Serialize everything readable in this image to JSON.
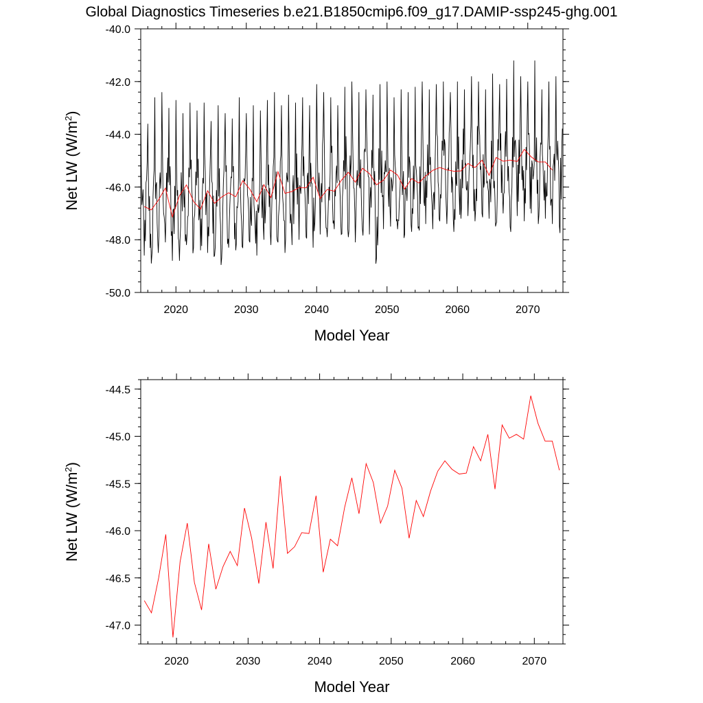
{
  "figure": {
    "title": "Global Diagnostics Timeseries b.e21.B1850cmip6.f09_g17.DAMIP-ssp245-ghg.001"
  },
  "colors": {
    "monthly_line": "#000000",
    "annual_line": "#ff0000",
    "axes": "#000000"
  },
  "chart_data": [
    {
      "type": "line",
      "xlabel": "Model Year",
      "ylabel": "Net LW (W/m²)",
      "ylabel_main": "Net LW (W/m",
      "ylabel_sup": "2",
      "ylabel_close": ")",
      "xlim": [
        2015,
        2075
      ],
      "ylim": [
        -50.0,
        -40.0
      ],
      "xticks": [
        2020,
        2030,
        2040,
        2050,
        2060,
        2070
      ],
      "xtick_labels": [
        "2020",
        "2030",
        "2040",
        "2050",
        "2060",
        "2070"
      ],
      "yticks": [
        -50.0,
        -48.0,
        -46.0,
        -44.0,
        -42.0,
        -40.0
      ],
      "ytick_labels": [
        "-50.0",
        "-48.0",
        "-46.0",
        "-44.0",
        "-42.0",
        "-40.0"
      ],
      "grid": false,
      "series": [
        {
          "color": "#000000",
          "kind": "monthly",
          "x_start": 2015.0,
          "x_step": 0.0833333,
          "annual_peaks": [
            -43.3,
            -43.6,
            -42.6,
            -42.4,
            -43.0,
            -42.7,
            -43.2,
            -42.8,
            -43.1,
            -42.8,
            -43.5,
            -42.9,
            -43.2,
            -43.4,
            -42.6,
            -43.2,
            -42.9,
            -43.1,
            -42.7,
            -42.4,
            -42.9,
            -42.5,
            -42.8,
            -42.6,
            -42.9,
            -42.1,
            -42.4,
            -42.6,
            -42.9,
            -42.2,
            -42.0,
            -42.4,
            -42.3,
            -42.5,
            -42.1,
            -42.0,
            -42.6,
            -42.3,
            -42.4,
            -42.2,
            -42.0,
            -42.3,
            -42.1,
            -42.0,
            -42.4,
            -42.0,
            -42.3,
            -41.8,
            -42.0,
            -42.3,
            -41.7,
            -42.1,
            -41.9,
            -41.2,
            -41.8,
            -42.0,
            -41.2,
            -42.3,
            -42.0,
            -41.8
          ],
          "annual_troughs": [
            -48.6,
            -48.9,
            -48.5,
            -48.1,
            -48.8,
            -48.8,
            -48.2,
            -48.3,
            -48.4,
            -48.5,
            -48.6,
            -48.7,
            -48.3,
            -48.4,
            -48.3,
            -48.1,
            -48.6,
            -48.0,
            -48.2,
            -48.1,
            -48.5,
            -48.2,
            -48.0,
            -47.9,
            -48.3,
            -47.8,
            -47.9,
            -47.6,
            -47.8,
            -47.9,
            -48.1,
            -47.6,
            -47.8,
            -48.7,
            -47.6,
            -47.5,
            -47.6,
            -47.8,
            -47.7,
            -47.5,
            -47.4,
            -47.6,
            -47.3,
            -47.4,
            -47.7,
            -47.2,
            -47.1,
            -47.3,
            -47.0,
            -47.2,
            -47.4,
            -47.0,
            -47.5,
            -47.1,
            -47.3,
            -47.0,
            -47.4,
            -47.2,
            -47.4,
            -47.5
          ]
        },
        {
          "color": "#ff0000",
          "kind": "annual",
          "x": [
            2015.5,
            2016.5,
            2017.5,
            2018.5,
            2019.5,
            2020.5,
            2021.5,
            2022.5,
            2023.5,
            2024.5,
            2025.5,
            2026.5,
            2027.5,
            2028.5,
            2029.5,
            2030.5,
            2031.5,
            2032.5,
            2033.5,
            2034.5,
            2035.5,
            2036.5,
            2037.5,
            2038.5,
            2039.5,
            2040.5,
            2041.5,
            2042.5,
            2043.5,
            2044.5,
            2045.5,
            2046.5,
            2047.5,
            2048.5,
            2049.5,
            2050.5,
            2051.5,
            2052.5,
            2053.5,
            2054.5,
            2055.5,
            2056.5,
            2057.5,
            2058.5,
            2059.5,
            2060.5,
            2061.5,
            2062.5,
            2063.5,
            2064.5,
            2065.5,
            2066.5,
            2067.5,
            2068.5,
            2069.5,
            2070.5,
            2071.5,
            2072.5,
            2073.5
          ],
          "y": [
            -46.74,
            -46.87,
            -46.5,
            -46.04,
            -47.13,
            -46.33,
            -45.92,
            -46.55,
            -46.84,
            -46.14,
            -46.62,
            -46.38,
            -46.22,
            -46.37,
            -45.76,
            -46.08,
            -46.56,
            -45.91,
            -46.4,
            -45.42,
            -46.24,
            -46.17,
            -46.02,
            -46.03,
            -45.63,
            -46.44,
            -46.09,
            -46.16,
            -45.75,
            -45.44,
            -45.82,
            -45.29,
            -45.49,
            -45.92,
            -45.74,
            -45.36,
            -45.55,
            -46.08,
            -45.68,
            -45.85,
            -45.58,
            -45.37,
            -45.26,
            -45.35,
            -45.4,
            -45.39,
            -45.11,
            -45.26,
            -44.98,
            -45.56,
            -44.88,
            -45.02,
            -44.98,
            -45.03,
            -44.57,
            -44.86,
            -45.05,
            -45.05,
            -45.36
          ]
        }
      ]
    },
    {
      "type": "line",
      "xlabel": "Model Year",
      "ylabel": "Net LW (W/m²)",
      "ylabel_main": "Net LW (W/m",
      "ylabel_sup": "2",
      "ylabel_close": ")",
      "xlim": [
        2015,
        2074
      ],
      "ylim": [
        -47.2,
        -44.4
      ],
      "xticks": [
        2020,
        2030,
        2040,
        2050,
        2060,
        2070
      ],
      "xtick_labels": [
        "2020",
        "2030",
        "2040",
        "2050",
        "2060",
        "2070"
      ],
      "yticks": [
        -47.0,
        -46.5,
        -46.0,
        -45.5,
        -45.0,
        -44.5
      ],
      "ytick_labels": [
        "-47.0",
        "-46.5",
        "-46.0",
        "-45.5",
        "-45.0",
        "-44.5"
      ],
      "grid": false,
      "series": [
        {
          "color": "#ff0000",
          "kind": "annual",
          "x": [
            2015.5,
            2016.5,
            2017.5,
            2018.5,
            2019.5,
            2020.5,
            2021.5,
            2022.5,
            2023.5,
            2024.5,
            2025.5,
            2026.5,
            2027.5,
            2028.5,
            2029.5,
            2030.5,
            2031.5,
            2032.5,
            2033.5,
            2034.5,
            2035.5,
            2036.5,
            2037.5,
            2038.5,
            2039.5,
            2040.5,
            2041.5,
            2042.5,
            2043.5,
            2044.5,
            2045.5,
            2046.5,
            2047.5,
            2048.5,
            2049.5,
            2050.5,
            2051.5,
            2052.5,
            2053.5,
            2054.5,
            2055.5,
            2056.5,
            2057.5,
            2058.5,
            2059.5,
            2060.5,
            2061.5,
            2062.5,
            2063.5,
            2064.5,
            2065.5,
            2066.5,
            2067.5,
            2068.5,
            2069.5,
            2070.5,
            2071.5,
            2072.5,
            2073.5
          ],
          "y": [
            -46.74,
            -46.87,
            -46.5,
            -46.04,
            -47.13,
            -46.33,
            -45.92,
            -46.55,
            -46.84,
            -46.14,
            -46.62,
            -46.38,
            -46.22,
            -46.37,
            -45.76,
            -46.08,
            -46.56,
            -45.91,
            -46.4,
            -45.42,
            -46.24,
            -46.17,
            -46.02,
            -46.03,
            -45.63,
            -46.44,
            -46.09,
            -46.16,
            -45.75,
            -45.44,
            -45.82,
            -45.29,
            -45.49,
            -45.92,
            -45.74,
            -45.36,
            -45.55,
            -46.08,
            -45.68,
            -45.85,
            -45.58,
            -45.37,
            -45.26,
            -45.35,
            -45.4,
            -45.39,
            -45.11,
            -45.26,
            -44.98,
            -45.56,
            -44.88,
            -45.02,
            -44.98,
            -45.03,
            -44.57,
            -44.86,
            -45.05,
            -45.05,
            -45.36
          ]
        }
      ]
    }
  ]
}
